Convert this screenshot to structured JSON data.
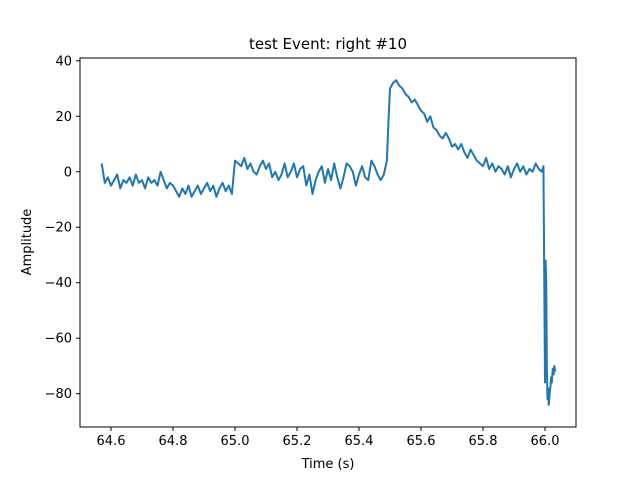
{
  "chart_data": {
    "type": "line",
    "title": "test Event: right #10",
    "xlabel": "Time (s)",
    "ylabel": "Amplitude",
    "xlim": [
      64.5,
      66.1
    ],
    "ylim": [
      -92,
      41
    ],
    "xticks": [
      64.6,
      64.8,
      65.0,
      65.2,
      65.4,
      65.6,
      65.8,
      66.0
    ],
    "xtick_labels": [
      "64.6",
      "64.8",
      "65.0",
      "65.2",
      "65.4",
      "65.6",
      "65.8",
      "66.0"
    ],
    "yticks": [
      40,
      20,
      0,
      -20,
      -40,
      -60,
      -80
    ],
    "ytick_labels": [
      "40",
      "20",
      "0",
      "−20",
      "−40",
      "−60",
      "−80"
    ],
    "grid": false,
    "color": "#1f77b4",
    "series": [
      {
        "x": [
          64.57,
          64.58,
          64.59,
          64.6,
          64.61,
          64.62,
          64.63,
          64.64,
          64.65,
          64.66,
          64.67,
          64.68,
          64.69,
          64.7,
          64.71,
          64.72,
          64.73,
          64.74,
          64.75,
          64.76,
          64.77,
          64.78,
          64.79,
          64.8,
          64.81,
          64.82,
          64.83,
          64.84,
          64.85,
          64.86,
          64.87,
          64.88,
          64.89,
          64.9,
          64.91,
          64.92,
          64.93,
          64.94,
          64.95,
          64.96,
          64.97,
          64.98,
          64.99,
          65.0,
          65.01,
          65.02,
          65.03,
          65.04,
          65.05,
          65.06,
          65.07,
          65.08,
          65.09,
          65.1,
          65.11,
          65.12,
          65.13,
          65.14,
          65.15,
          65.16,
          65.17,
          65.18,
          65.19,
          65.2,
          65.21,
          65.22,
          65.23,
          65.24,
          65.25,
          65.26,
          65.27,
          65.28,
          65.29,
          65.3,
          65.31,
          65.32,
          65.33,
          65.34,
          65.35,
          65.36,
          65.37,
          65.38,
          65.39,
          65.4,
          65.41,
          65.42,
          65.43,
          65.44,
          65.45,
          65.46,
          65.47,
          65.48,
          65.49,
          65.495,
          65.5,
          65.51,
          65.52,
          65.53,
          65.54,
          65.55,
          65.56,
          65.57,
          65.58,
          65.59,
          65.6,
          65.61,
          65.62,
          65.63,
          65.64,
          65.65,
          65.66,
          65.67,
          65.68,
          65.69,
          65.7,
          65.71,
          65.72,
          65.73,
          65.74,
          65.75,
          65.76,
          65.77,
          65.78,
          65.79,
          65.8,
          65.81,
          65.82,
          65.83,
          65.84,
          65.85,
          65.86,
          65.87,
          65.88,
          65.89,
          65.9,
          65.91,
          65.92,
          65.93,
          65.94,
          65.95,
          65.96,
          65.97,
          65.98,
          65.99,
          65.995,
          66.0,
          66.002,
          66.004,
          66.006,
          66.008,
          66.01,
          66.012,
          66.015,
          66.018,
          66.02,
          66.022,
          66.025,
          66.028,
          66.03,
          66.033
        ],
        "y": [
          3,
          -4,
          -2,
          -5,
          -3,
          -1,
          -6,
          -3,
          -4,
          -2,
          -5,
          -1,
          -4,
          -3,
          -6,
          -2,
          -4,
          -3,
          -5,
          0,
          -3,
          -6,
          -4,
          -5,
          -7,
          -9,
          -6,
          -8,
          -5,
          -9,
          -7,
          -5,
          -8,
          -6,
          -4,
          -7,
          -5,
          -9,
          -6,
          -4,
          -7,
          -5,
          -8,
          4,
          3,
          2,
          5,
          1,
          3,
          0,
          -1,
          2,
          4,
          1,
          3,
          -2,
          0,
          -3,
          -1,
          3,
          -2,
          0,
          3,
          -2,
          1,
          2,
          -5,
          -1,
          -8,
          -3,
          0,
          2,
          -4,
          1,
          -3,
          3,
          -2,
          -6,
          -2,
          3,
          2,
          0,
          -5,
          -1,
          2,
          -2,
          -3,
          4,
          2,
          -1,
          -3,
          -1,
          4,
          18,
          30,
          32,
          33,
          31,
          30,
          28,
          27,
          25,
          26,
          24,
          22,
          21,
          18,
          20,
          16,
          15,
          13,
          12,
          14,
          12,
          9,
          10,
          8,
          10,
          7,
          5,
          8,
          6,
          4,
          3,
          2,
          5,
          1,
          3,
          0,
          2,
          1,
          -1,
          2,
          -2,
          1,
          3,
          0,
          2,
          -1,
          1,
          0,
          3,
          1,
          0,
          2,
          -76,
          -32,
          -40,
          -70,
          -82,
          -78,
          -84,
          -80,
          -77,
          -74,
          -76,
          -71,
          -73,
          -70,
          -72
        ],
        "name": ""
      }
    ]
  }
}
